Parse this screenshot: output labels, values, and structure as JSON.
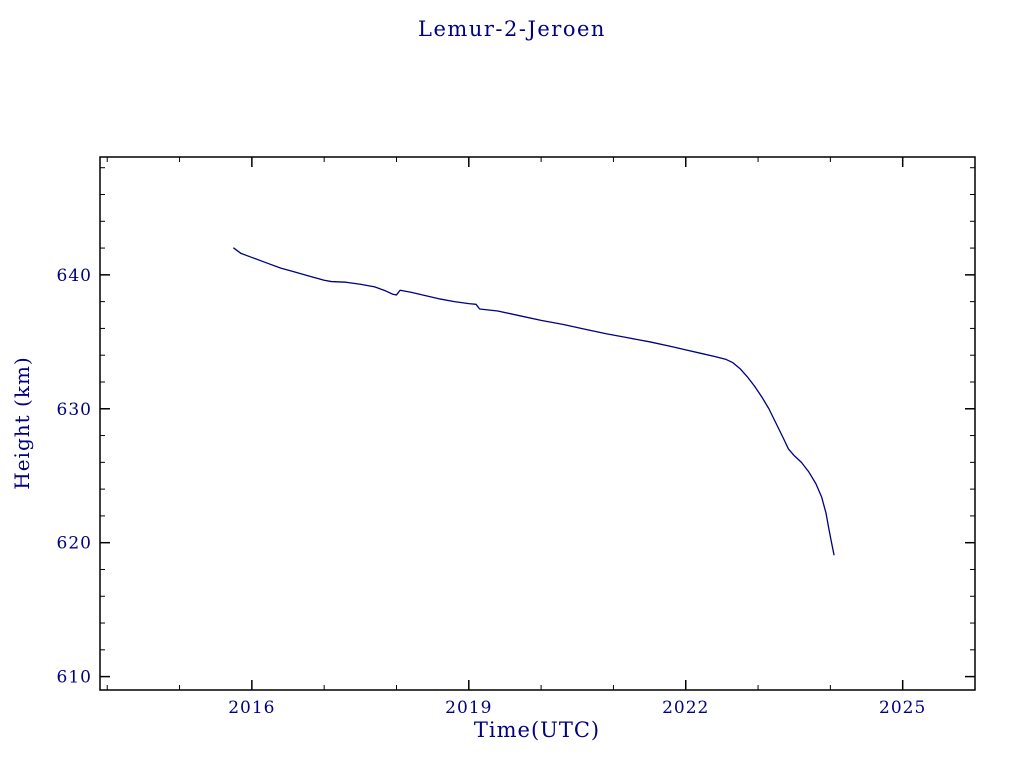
{
  "page": {
    "background": "#ffffff"
  },
  "chart_data": {
    "type": "line",
    "title": "Lemur-2-Jeroen",
    "xlabel": "Time(UTC)",
    "ylabel": "Height (km)",
    "xlim": [
      2013.9,
      2026.0
    ],
    "ylim": [
      609.0,
      648.8
    ],
    "xticks": [
      2016,
      2019,
      2022,
      2025
    ],
    "yticks": [
      610,
      620,
      630,
      640
    ],
    "x_minor_step": 1,
    "y_minor_step": 2,
    "grid": false,
    "frame_color": "#000000",
    "text_color": "#000080",
    "series": [
      {
        "name": "orbital-height",
        "color": "#000080",
        "points": [
          [
            2015.75,
            642.0
          ],
          [
            2015.85,
            641.6
          ],
          [
            2016.0,
            641.3
          ],
          [
            2016.2,
            640.9
          ],
          [
            2016.4,
            640.5
          ],
          [
            2016.6,
            640.2
          ],
          [
            2016.8,
            639.9
          ],
          [
            2017.0,
            639.6
          ],
          [
            2017.1,
            639.5
          ],
          [
            2017.3,
            639.45
          ],
          [
            2017.5,
            639.3
          ],
          [
            2017.7,
            639.1
          ],
          [
            2017.85,
            638.8
          ],
          [
            2017.95,
            638.55
          ],
          [
            2018.0,
            638.5
          ],
          [
            2018.05,
            638.85
          ],
          [
            2018.2,
            638.7
          ],
          [
            2018.4,
            638.45
          ],
          [
            2018.6,
            638.2
          ],
          [
            2018.8,
            638.0
          ],
          [
            2019.0,
            637.85
          ],
          [
            2019.1,
            637.8
          ],
          [
            2019.15,
            637.45
          ],
          [
            2019.4,
            637.3
          ],
          [
            2019.7,
            636.95
          ],
          [
            2020.0,
            636.6
          ],
          [
            2020.3,
            636.3
          ],
          [
            2020.6,
            635.95
          ],
          [
            2020.9,
            635.6
          ],
          [
            2021.2,
            635.3
          ],
          [
            2021.5,
            635.0
          ],
          [
            2021.8,
            634.65
          ],
          [
            2022.0,
            634.4
          ],
          [
            2022.2,
            634.15
          ],
          [
            2022.4,
            633.9
          ],
          [
            2022.55,
            633.7
          ],
          [
            2022.65,
            633.45
          ],
          [
            2022.75,
            633.0
          ],
          [
            2022.85,
            632.4
          ],
          [
            2022.95,
            631.7
          ],
          [
            2023.05,
            630.9
          ],
          [
            2023.15,
            630.0
          ],
          [
            2023.25,
            628.9
          ],
          [
            2023.35,
            627.8
          ],
          [
            2023.42,
            627.0
          ],
          [
            2023.5,
            626.5
          ],
          [
            2023.6,
            626.0
          ],
          [
            2023.7,
            625.3
          ],
          [
            2023.8,
            624.4
          ],
          [
            2023.88,
            623.4
          ],
          [
            2023.94,
            622.2
          ],
          [
            2023.98,
            621.0
          ],
          [
            2024.02,
            619.9
          ],
          [
            2024.05,
            619.1
          ]
        ]
      }
    ]
  }
}
